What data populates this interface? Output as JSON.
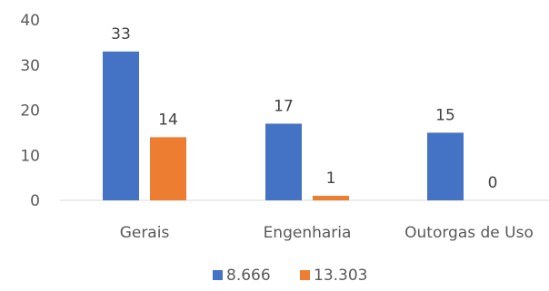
{
  "chart_data": {
    "type": "bar",
    "categories": [
      "Gerais",
      "Engenharia",
      "Outorgas de Uso"
    ],
    "series": [
      {
        "name": "8.666",
        "values": [
          33,
          17,
          15
        ],
        "color": "#4472C4"
      },
      {
        "name": "13.303",
        "values": [
          14,
          1,
          0
        ],
        "color": "#ED7D31"
      }
    ],
    "ylim": [
      0,
      40
    ],
    "yticks": [
      0,
      10,
      20,
      30,
      40
    ],
    "grid": false,
    "data_labels": true,
    "legend_position": "bottom"
  }
}
